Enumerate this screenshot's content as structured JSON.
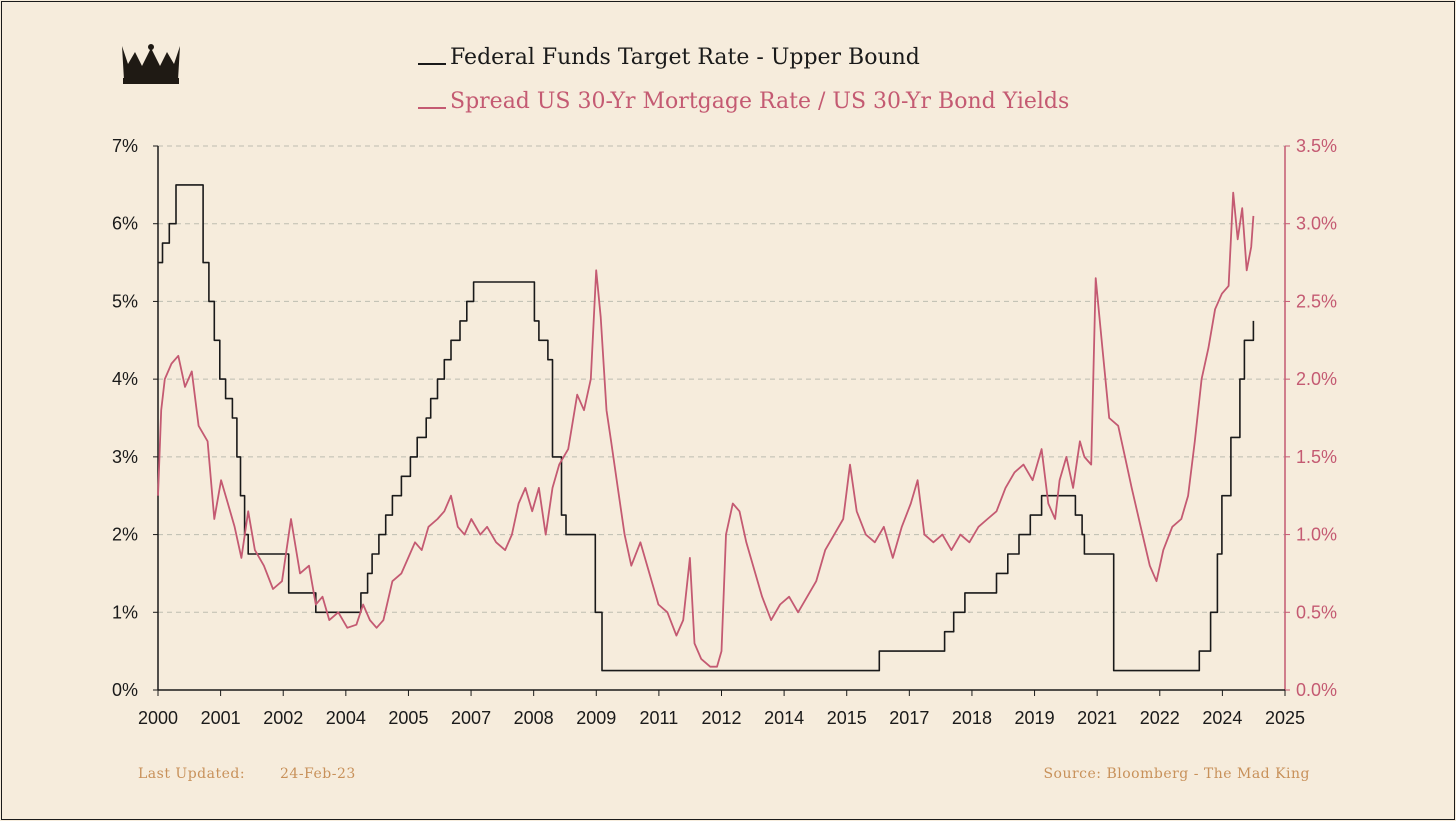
{
  "chart_data": {
    "type": "line",
    "series": [
      {
        "name": "Federal Funds Target Rate - Upper Bound",
        "axis": "left",
        "color": "#1a1a1a",
        "step": true,
        "points": [
          [
            2000.0,
            5.5
          ],
          [
            2000.1,
            5.75
          ],
          [
            2000.25,
            6.0
          ],
          [
            2000.4,
            6.5
          ],
          [
            2001.0,
            5.5
          ],
          [
            2001.13,
            5.0
          ],
          [
            2001.25,
            4.5
          ],
          [
            2001.37,
            4.0
          ],
          [
            2001.5,
            3.75
          ],
          [
            2001.65,
            3.5
          ],
          [
            2001.75,
            3.0
          ],
          [
            2001.83,
            2.5
          ],
          [
            2001.92,
            2.0
          ],
          [
            2002.0,
            1.75
          ],
          [
            2002.9,
            1.25
          ],
          [
            2003.5,
            1.0
          ],
          [
            2004.5,
            1.25
          ],
          [
            2004.65,
            1.5
          ],
          [
            2004.75,
            1.75
          ],
          [
            2004.9,
            2.0
          ],
          [
            2005.05,
            2.25
          ],
          [
            2005.2,
            2.5
          ],
          [
            2005.4,
            2.75
          ],
          [
            2005.6,
            3.0
          ],
          [
            2005.75,
            3.25
          ],
          [
            2005.95,
            3.5
          ],
          [
            2006.05,
            3.75
          ],
          [
            2006.2,
            4.0
          ],
          [
            2006.35,
            4.25
          ],
          [
            2006.5,
            4.5
          ],
          [
            2006.7,
            4.75
          ],
          [
            2006.85,
            5.0
          ],
          [
            2007.0,
            5.25
          ],
          [
            2008.35,
            4.75
          ],
          [
            2008.45,
            4.5
          ],
          [
            2008.65,
            4.25
          ],
          [
            2008.75,
            3.0
          ],
          [
            2008.95,
            2.25
          ],
          [
            2009.05,
            2.0
          ],
          [
            2009.7,
            1.0
          ],
          [
            2009.85,
            0.25
          ],
          [
            2016.0,
            0.5
          ],
          [
            2017.45,
            0.75
          ],
          [
            2017.65,
            1.0
          ],
          [
            2017.9,
            1.25
          ],
          [
            2018.6,
            1.5
          ],
          [
            2018.85,
            1.75
          ],
          [
            2019.1,
            2.0
          ],
          [
            2019.35,
            2.25
          ],
          [
            2019.6,
            2.5
          ],
          [
            2020.35,
            2.25
          ],
          [
            2020.5,
            2.0
          ],
          [
            2020.55,
            1.75
          ],
          [
            2021.2,
            0.25
          ],
          [
            2023.1,
            0.5
          ],
          [
            2023.35,
            1.0
          ],
          [
            2023.5,
            1.75
          ],
          [
            2023.6,
            2.5
          ],
          [
            2023.8,
            3.25
          ],
          [
            2024.0,
            4.0
          ],
          [
            2024.1,
            4.5
          ],
          [
            2024.3,
            4.75
          ]
        ]
      },
      {
        "name": "Spread US 30-Yr Mortgage Rate / US 30-Yr Bond Yields",
        "axis": "right",
        "color": "#C45A72",
        "step": false,
        "points": [
          [
            2000.0,
            1.25
          ],
          [
            2000.07,
            1.8
          ],
          [
            2000.15,
            2.0
          ],
          [
            2000.3,
            2.1
          ],
          [
            2000.45,
            2.15
          ],
          [
            2000.6,
            1.95
          ],
          [
            2000.75,
            2.05
          ],
          [
            2000.9,
            1.7
          ],
          [
            2001.1,
            1.6
          ],
          [
            2001.25,
            1.1
          ],
          [
            2001.4,
            1.35
          ],
          [
            2001.55,
            1.2
          ],
          [
            2001.7,
            1.05
          ],
          [
            2001.85,
            0.85
          ],
          [
            2002.0,
            1.15
          ],
          [
            2002.15,
            0.9
          ],
          [
            2002.35,
            0.8
          ],
          [
            2002.55,
            0.65
          ],
          [
            2002.75,
            0.7
          ],
          [
            2002.95,
            1.1
          ],
          [
            2003.15,
            0.75
          ],
          [
            2003.35,
            0.8
          ],
          [
            2003.5,
            0.55
          ],
          [
            2003.65,
            0.6
          ],
          [
            2003.8,
            0.45
          ],
          [
            2004.0,
            0.5
          ],
          [
            2004.2,
            0.4
          ],
          [
            2004.4,
            0.42
          ],
          [
            2004.55,
            0.55
          ],
          [
            2004.7,
            0.45
          ],
          [
            2004.85,
            0.4
          ],
          [
            2005.0,
            0.45
          ],
          [
            2005.2,
            0.7
          ],
          [
            2005.4,
            0.75
          ],
          [
            2005.55,
            0.85
          ],
          [
            2005.7,
            0.95
          ],
          [
            2005.85,
            0.9
          ],
          [
            2006.0,
            1.05
          ],
          [
            2006.2,
            1.1
          ],
          [
            2006.35,
            1.15
          ],
          [
            2006.5,
            1.25
          ],
          [
            2006.65,
            1.05
          ],
          [
            2006.8,
            1.0
          ],
          [
            2006.95,
            1.1
          ],
          [
            2007.15,
            1.0
          ],
          [
            2007.3,
            1.05
          ],
          [
            2007.5,
            0.95
          ],
          [
            2007.7,
            0.9
          ],
          [
            2007.85,
            1.0
          ],
          [
            2008.0,
            1.2
          ],
          [
            2008.15,
            1.3
          ],
          [
            2008.3,
            1.15
          ],
          [
            2008.45,
            1.3
          ],
          [
            2008.6,
            1.0
          ],
          [
            2008.75,
            1.3
          ],
          [
            2008.9,
            1.45
          ],
          [
            2009.1,
            1.55
          ],
          [
            2009.3,
            1.9
          ],
          [
            2009.45,
            1.8
          ],
          [
            2009.6,
            2.0
          ],
          [
            2009.72,
            2.7
          ],
          [
            2009.82,
            2.4
          ],
          [
            2009.95,
            1.8
          ],
          [
            2010.05,
            1.6
          ],
          [
            2010.2,
            1.3
          ],
          [
            2010.35,
            1.0
          ],
          [
            2010.5,
            0.8
          ],
          [
            2010.7,
            0.95
          ],
          [
            2010.9,
            0.75
          ],
          [
            2011.1,
            0.55
          ],
          [
            2011.3,
            0.5
          ],
          [
            2011.5,
            0.35
          ],
          [
            2011.65,
            0.45
          ],
          [
            2011.8,
            0.85
          ],
          [
            2011.9,
            0.3
          ],
          [
            2012.05,
            0.2
          ],
          [
            2012.25,
            0.15
          ],
          [
            2012.4,
            0.15
          ],
          [
            2012.5,
            0.25
          ],
          [
            2012.6,
            1.0
          ],
          [
            2012.75,
            1.2
          ],
          [
            2012.9,
            1.15
          ],
          [
            2013.05,
            0.95
          ],
          [
            2013.2,
            0.8
          ],
          [
            2013.4,
            0.6
          ],
          [
            2013.6,
            0.45
          ],
          [
            2013.8,
            0.55
          ],
          [
            2014.0,
            0.6
          ],
          [
            2014.2,
            0.5
          ],
          [
            2014.4,
            0.6
          ],
          [
            2014.6,
            0.7
          ],
          [
            2014.8,
            0.9
          ],
          [
            2015.0,
            1.0
          ],
          [
            2015.2,
            1.1
          ],
          [
            2015.35,
            1.45
          ],
          [
            2015.5,
            1.15
          ],
          [
            2015.7,
            1.0
          ],
          [
            2015.9,
            0.95
          ],
          [
            2016.1,
            1.05
          ],
          [
            2016.3,
            0.85
          ],
          [
            2016.5,
            1.05
          ],
          [
            2016.7,
            1.2
          ],
          [
            2016.85,
            1.35
          ],
          [
            2017.0,
            1.0
          ],
          [
            2017.2,
            0.95
          ],
          [
            2017.4,
            1.0
          ],
          [
            2017.6,
            0.9
          ],
          [
            2017.8,
            1.0
          ],
          [
            2018.0,
            0.95
          ],
          [
            2018.2,
            1.05
          ],
          [
            2018.4,
            1.1
          ],
          [
            2018.6,
            1.15
          ],
          [
            2018.8,
            1.3
          ],
          [
            2019.0,
            1.4
          ],
          [
            2019.2,
            1.45
          ],
          [
            2019.4,
            1.35
          ],
          [
            2019.6,
            1.55
          ],
          [
            2019.75,
            1.2
          ],
          [
            2019.9,
            1.1
          ],
          [
            2020.0,
            1.35
          ],
          [
            2020.15,
            1.5
          ],
          [
            2020.3,
            1.3
          ],
          [
            2020.45,
            1.6
          ],
          [
            2020.55,
            1.5
          ],
          [
            2020.7,
            1.45
          ],
          [
            2020.8,
            2.65
          ],
          [
            2020.95,
            2.2
          ],
          [
            2021.1,
            1.75
          ],
          [
            2021.3,
            1.7
          ],
          [
            2021.45,
            1.5
          ],
          [
            2021.6,
            1.3
          ],
          [
            2021.8,
            1.05
          ],
          [
            2022.0,
            0.8
          ],
          [
            2022.15,
            0.7
          ],
          [
            2022.3,
            0.9
          ],
          [
            2022.5,
            1.05
          ],
          [
            2022.7,
            1.1
          ],
          [
            2022.85,
            1.25
          ],
          [
            2023.0,
            1.6
          ],
          [
            2023.15,
            2.0
          ],
          [
            2023.3,
            2.2
          ],
          [
            2023.45,
            2.45
          ],
          [
            2023.6,
            2.55
          ],
          [
            2023.75,
            2.6
          ],
          [
            2023.85,
            3.2
          ],
          [
            2023.95,
            2.9
          ],
          [
            2024.05,
            3.1
          ],
          [
            2024.15,
            2.7
          ],
          [
            2024.25,
            2.85
          ],
          [
            2024.3,
            3.05
          ]
        ]
      }
    ],
    "xlim": [
      2000,
      2025
    ],
    "x_ticks": [
      "2000",
      "2001",
      "2002",
      "2004",
      "2005",
      "2007",
      "2008",
      "2009",
      "2011",
      "2012",
      "2014",
      "2015",
      "2017",
      "2018",
      "2019",
      "2021",
      "2022",
      "2024",
      "2025"
    ],
    "y_left": {
      "lim": [
        0,
        7
      ],
      "ticks": [
        "0%",
        "1%",
        "2%",
        "3%",
        "4%",
        "5%",
        "6%",
        "7%"
      ]
    },
    "y_right": {
      "lim": [
        0,
        3.5
      ],
      "ticks": [
        "0.0%",
        "0.5%",
        "1.0%",
        "1.5%",
        "2.0%",
        "2.5%",
        "3.0%",
        "3.5%"
      ]
    },
    "grid": "horizontal dashed",
    "legend_position": "top"
  },
  "footer": {
    "last_updated_label": "Last Updated:",
    "last_updated_value": "24-Feb-23",
    "source": "Source: Bloomberg - The Mad King"
  },
  "colors": {
    "background": "#F6ECDC",
    "spread": "#C45A72",
    "fed": "#1a1a1a",
    "footer": "#C8915A",
    "grid": "#BDBDB0"
  },
  "logo": "crown-icon"
}
